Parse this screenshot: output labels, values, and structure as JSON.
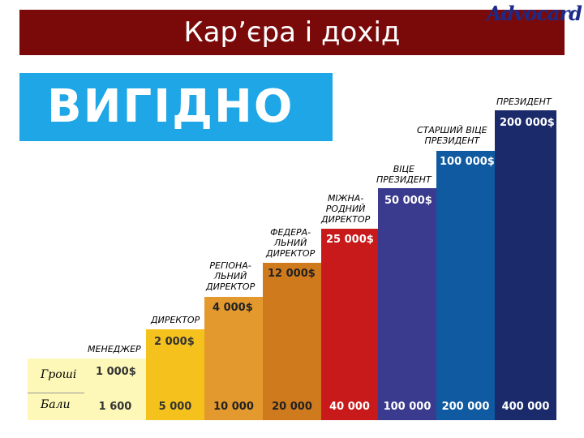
{
  "header": {
    "title": "Кар’єра і дохід",
    "logo": "Advocard"
  },
  "banner": {
    "text": "ВИГІДНО"
  },
  "rows": {
    "money_label": "Гроші",
    "score_label": "Бали"
  },
  "levels": [
    {
      "title": "МЕНЕДЖЕР",
      "income": "1 000$",
      "score": "1 600",
      "color": "#fdf8b8"
    },
    {
      "title": "ДИРЕКТОР",
      "income": "2 000$",
      "score": "5 000",
      "color": "#f5c11c"
    },
    {
      "title": "РЕГІОНА-\nЛЬНИЙ\nДИРЕКТОР",
      "income": "4 000$",
      "score": "10 000",
      "color": "#e4992e"
    },
    {
      "title": "ФЕДЕРА-\nЛЬНИЙ\nДИРЕКТОР",
      "income": "12 000$",
      "score": "20 000",
      "color": "#cf7a1c"
    },
    {
      "title": "МІЖНА-\nРОДНИЙ\nДИРЕКТОР",
      "income": "25 000$",
      "score": "40 000",
      "color": "#c81a1a"
    },
    {
      "title": "ВІЦЕ\nПРЕЗИДЕНТ",
      "income": "50 000$",
      "score": "100 000",
      "color": "#3a3a8e"
    },
    {
      "title": "СТАРШИЙ ВІЦЕ\nПРЕЗИДЕНТ",
      "income": "100 000$",
      "score": "200 000",
      "color": "#0f5aa0"
    },
    {
      "title": "ПРЕЗИДЕНТ",
      "income": "200 000$",
      "score": "400 000",
      "color": "#1a2a6a"
    }
  ]
}
